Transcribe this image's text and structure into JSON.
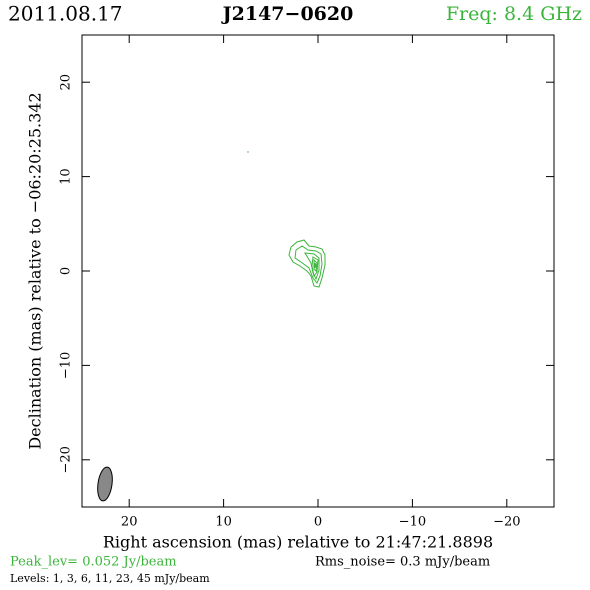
{
  "chart_data": {
    "type": "contour",
    "date": "2011.08.17",
    "title": "J2147−0620",
    "frequency": "Freq: 8.4 GHz",
    "xlabel": "Right ascension (mas) relative to 21:47:21.8898",
    "ylabel": "Declination (mas) relative to −06:20:25.342",
    "xlim": [
      25,
      -25
    ],
    "ylim": [
      -25,
      25
    ],
    "xticks": [
      20,
      10,
      0,
      -10,
      -20
    ],
    "yticks": [
      -20,
      -10,
      0,
      10,
      20
    ],
    "peak": "Peak_lev=  0.052 Jy/beam",
    "noise": "Rms_noise=  0.3 mJy/beam",
    "levels": "Levels:   1,   3,   6,   11,   23,   45  mJy/beam",
    "contour_color": "#3cb43c"
  }
}
